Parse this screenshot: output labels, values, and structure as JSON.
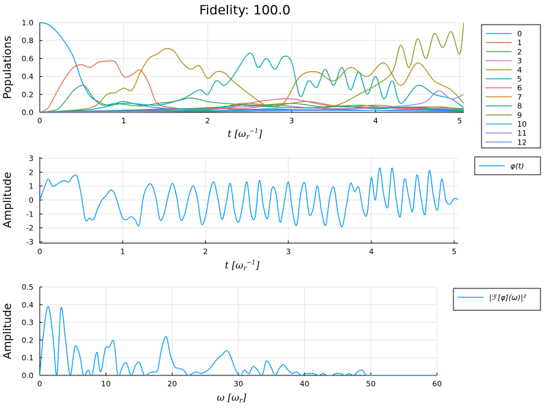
{
  "chart_data": [
    {
      "type": "line",
      "title": "Fidelity: 100.0",
      "xlabel": "t [ω_r^-1]",
      "ylabel": "Populations",
      "xlim": [
        0,
        5.05
      ],
      "ylim": [
        0,
        1.0
      ],
      "xticks": [
        0,
        1,
        2,
        3,
        4,
        5
      ],
      "yticks": [
        0.0,
        0.2,
        0.4,
        0.6,
        0.8,
        1.0
      ],
      "ytick_labels": [
        "0.0",
        "0.2",
        "0.4",
        "0.6",
        "0.8",
        "1.0"
      ],
      "grid": true,
      "legend_position": "outer-right",
      "series": [
        {
          "name": "0",
          "color": "#009AFA",
          "x": [
            0,
            0.1,
            0.2,
            0.3,
            0.4,
            0.5,
            0.6,
            0.7,
            0.8,
            0.9,
            1.0,
            1.2,
            1.4,
            1.6,
            1.8,
            2.0,
            2.4,
            2.8,
            3.2,
            3.6,
            4.0,
            4.4,
            4.8,
            5.05
          ],
          "y": [
            1.0,
            0.98,
            0.9,
            0.78,
            0.62,
            0.35,
            0.18,
            0.12,
            0.08,
            0.1,
            0.12,
            0.08,
            0.05,
            0.04,
            0.03,
            0.05,
            0.03,
            0.04,
            0.02,
            0.03,
            0.02,
            0.03,
            0.02,
            0.01
          ]
        },
        {
          "name": "1",
          "color": "#E36F47",
          "x": [
            0,
            0.1,
            0.2,
            0.3,
            0.4,
            0.5,
            0.6,
            0.7,
            0.8,
            0.9,
            1.0,
            1.1,
            1.2,
            1.3,
            1.4,
            1.6,
            1.8,
            2.0,
            2.4,
            2.8,
            3.2,
            3.6,
            4.0,
            4.4,
            4.8,
            5.05
          ],
          "y": [
            0,
            0.05,
            0.22,
            0.38,
            0.5,
            0.53,
            0.5,
            0.56,
            0.57,
            0.56,
            0.4,
            0.42,
            0.47,
            0.32,
            0.1,
            0.05,
            0.03,
            0.05,
            0.04,
            0.08,
            0.05,
            0.04,
            0.05,
            0.04,
            0.03,
            0.02
          ]
        },
        {
          "name": "2",
          "color": "#3EA44E",
          "x": [
            0,
            0.2,
            0.3,
            0.4,
            0.5,
            0.55,
            0.65,
            0.75,
            0.9,
            1.0,
            1.2,
            1.4,
            1.6,
            1.8,
            2.0,
            2.2,
            2.6,
            3.0,
            3.4,
            3.8,
            4.2,
            4.6,
            5.05
          ],
          "y": [
            0,
            0.03,
            0.12,
            0.24,
            0.3,
            0.28,
            0.15,
            0.08,
            0.1,
            0.09,
            0.07,
            0.1,
            0.12,
            0.16,
            0.12,
            0.1,
            0.08,
            0.1,
            0.06,
            0.08,
            0.05,
            0.06,
            0.04
          ]
        },
        {
          "name": "3",
          "color": "#C371D2",
          "x": [
            0,
            0.4,
            0.8,
            1.2,
            1.6,
            2.0,
            2.4,
            2.8,
            3.2,
            3.6,
            4.0,
            4.4,
            4.8,
            5.05
          ],
          "y": [
            0,
            0.01,
            0.02,
            0.03,
            0.04,
            0.03,
            0.06,
            0.08,
            0.05,
            0.04,
            0.06,
            0.05,
            0.04,
            0.03
          ]
        },
        {
          "name": "4",
          "color": "#AC8E18",
          "x": [
            0,
            0.6,
            0.8,
            0.9,
            1.0,
            1.1,
            1.2,
            1.3,
            1.4,
            1.5,
            1.6,
            1.7,
            1.8,
            1.9,
            2.0,
            2.1,
            2.2,
            2.3,
            2.5,
            2.7,
            2.9,
            3.1,
            3.3,
            3.5,
            3.7,
            3.9,
            4.1,
            4.3,
            4.5,
            4.7,
            4.9,
            5.05
          ],
          "y": [
            0,
            0.05,
            0.2,
            0.22,
            0.27,
            0.25,
            0.45,
            0.6,
            0.65,
            0.71,
            0.68,
            0.55,
            0.48,
            0.52,
            0.38,
            0.45,
            0.44,
            0.35,
            0.2,
            0.08,
            0.1,
            0.4,
            0.45,
            0.35,
            0.5,
            0.4,
            0.55,
            0.3,
            0.55,
            0.35,
            0.25,
            0.1
          ]
        },
        {
          "name": "5",
          "color": "#00A9AD",
          "x": [
            0,
            0.6,
            1.0,
            1.4,
            1.7,
            1.9,
            2.0,
            2.1,
            2.2,
            2.3,
            2.5,
            2.6,
            2.7,
            2.8,
            2.9,
            3.0,
            3.1,
            3.2,
            3.3,
            3.4,
            3.5,
            3.6,
            3.7,
            3.8,
            3.9,
            4.0,
            4.1,
            4.2,
            4.3,
            4.5,
            4.7,
            4.9,
            5.05
          ],
          "y": [
            0,
            0.03,
            0.1,
            0.08,
            0.15,
            0.25,
            0.2,
            0.35,
            0.3,
            0.4,
            0.66,
            0.5,
            0.6,
            0.48,
            0.62,
            0.56,
            0.18,
            0.35,
            0.28,
            0.48,
            0.3,
            0.5,
            0.25,
            0.45,
            0.2,
            0.4,
            0.15,
            0.35,
            0.1,
            0.3,
            0.2,
            0.15,
            0.05
          ]
        },
        {
          "name": "6",
          "color": "#ED5D92",
          "x": [
            0,
            0.8,
            1.6,
            2.2,
            2.6,
            3.0,
            3.4,
            3.8,
            4.2,
            4.6,
            5.05
          ],
          "y": [
            0,
            0.01,
            0.03,
            0.05,
            0.12,
            0.15,
            0.08,
            0.06,
            0.05,
            0.04,
            0.03
          ]
        },
        {
          "name": "7",
          "color": "#C68125",
          "x": [
            0,
            1.0,
            2.0,
            2.4,
            2.8,
            3.2,
            3.6,
            4.0,
            4.4,
            4.8,
            5.05
          ],
          "y": [
            0,
            0.01,
            0.03,
            0.1,
            0.08,
            0.12,
            0.06,
            0.08,
            0.05,
            0.06,
            0.02
          ]
        },
        {
          "name": "8",
          "color": "#00A98D",
          "x": [
            0,
            1.0,
            2.0,
            2.4,
            2.8,
            3.2,
            3.6,
            4.0,
            4.4,
            4.8,
            5.05
          ],
          "y": [
            0,
            0.02,
            0.05,
            0.08,
            0.06,
            0.05,
            0.07,
            0.04,
            0.06,
            0.03,
            0.02
          ]
        },
        {
          "name": "9",
          "color": "#8E971D",
          "x": [
            0,
            3.0,
            3.4,
            3.6,
            3.8,
            4.0,
            4.2,
            4.3,
            4.4,
            4.5,
            4.6,
            4.7,
            4.8,
            4.9,
            5.0,
            5.05
          ],
          "y": [
            0,
            0.02,
            0.05,
            0.1,
            0.2,
            0.3,
            0.45,
            0.75,
            0.5,
            0.82,
            0.6,
            0.88,
            0.72,
            0.9,
            0.65,
            1.0
          ]
        },
        {
          "name": "10",
          "color": "#00A8CB",
          "x": [
            0,
            1.0,
            2.0,
            3.0,
            4.0,
            5.05
          ],
          "y": [
            0,
            0.01,
            0.02,
            0.03,
            0.02,
            0.01
          ]
        },
        {
          "name": "11",
          "color": "#9B7FE8",
          "x": [
            0,
            2.0,
            3.0,
            3.6,
            4.0,
            4.4,
            4.6,
            4.75,
            4.9,
            5.05
          ],
          "y": [
            0,
            0.01,
            0.02,
            0.04,
            0.05,
            0.08,
            0.12,
            0.24,
            0.15,
            0.2
          ]
        },
        {
          "name": "12",
          "color": "#618DF6",
          "x": [
            0,
            1.0,
            2.0,
            3.0,
            4.0,
            5.05
          ],
          "y": [
            0,
            0.01,
            0.01,
            0.02,
            0.02,
            0.01
          ]
        }
      ]
    },
    {
      "type": "line",
      "title": "",
      "xlabel": "t [ω_r^-1]",
      "ylabel": "Amplitude",
      "xlim": [
        0,
        5.05
      ],
      "ylim": [
        -3.1,
        3.1
      ],
      "xticks": [
        0,
        1,
        2,
        3,
        4,
        5
      ],
      "yticks": [
        -3,
        -2,
        -1,
        0,
        1,
        2,
        3
      ],
      "grid": true,
      "legend_position": "outer-right",
      "series": [
        {
          "name": "φ(t)",
          "color": "#009AFA",
          "x": [
            0,
            0.05,
            0.1,
            0.15,
            0.2,
            0.25,
            0.3,
            0.35,
            0.4,
            0.45,
            0.5,
            0.55,
            0.6,
            0.65,
            0.7,
            0.75,
            0.8,
            0.85,
            0.9,
            0.95,
            1.0,
            1.05,
            1.1,
            1.15,
            1.2,
            1.25,
            1.3,
            1.35,
            1.4,
            1.45,
            1.5,
            1.55,
            1.6,
            1.65,
            1.7,
            1.75,
            1.8,
            1.85,
            1.9,
            1.95,
            2.0,
            2.05,
            2.1,
            2.15,
            2.2,
            2.25,
            2.3,
            2.35,
            2.4,
            2.45,
            2.5,
            2.55,
            2.6,
            2.65,
            2.7,
            2.75,
            2.8,
            2.85,
            2.9,
            2.95,
            3.0,
            3.05,
            3.1,
            3.15,
            3.2,
            3.25,
            3.3,
            3.35,
            3.4,
            3.45,
            3.5,
            3.55,
            3.6,
            3.65,
            3.7,
            3.75,
            3.8,
            3.85,
            3.9,
            3.95,
            4.0,
            4.05,
            4.1,
            4.15,
            4.2,
            4.25,
            4.3,
            4.35,
            4.4,
            4.45,
            4.5,
            4.55,
            4.6,
            4.65,
            4.7,
            4.75,
            4.8,
            4.85,
            4.9,
            4.95,
            5.0,
            5.05
          ],
          "y": [
            0,
            0.8,
            1.5,
            1.0,
            1.1,
            1.3,
            1.4,
            1.3,
            1.7,
            1.7,
            0.4,
            -1.4,
            -1.3,
            -1.4,
            -0.6,
            0.0,
            0.3,
            0.7,
            0.5,
            -0.4,
            -1.3,
            -1.4,
            -1.2,
            -1.4,
            -1.8,
            0.2,
            1.0,
            1.1,
            0.2,
            -1.4,
            -1.0,
            0.3,
            1.2,
            0.3,
            -1.4,
            -1.0,
            0.3,
            1.0,
            0.2,
            -1.7,
            -1.2,
            0.5,
            1.3,
            0.1,
            -1.4,
            -0.2,
            1.2,
            -0.8,
            -1.6,
            -0.3,
            1.3,
            -1.0,
            -1.2,
            1.4,
            -0.5,
            -1.3,
            0.8,
            0.5,
            -1.6,
            -0.2,
            1.3,
            -0.8,
            -1.8,
            0.5,
            1.2,
            -1.0,
            -0.6,
            1.0,
            -0.8,
            -1.8,
            0.2,
            0.9,
            -1.0,
            -1.9,
            -0.4,
            1.2,
            0.6,
            0.9,
            -0.7,
            -1.0,
            1.6,
            0.0,
            2.3,
            0.4,
            -0.5,
            2.3,
            0.1,
            -1.2,
            1.5,
            0.3,
            -0.8,
            1.8,
            0.2,
            -1.0,
            2.1,
            0.3,
            -0.7,
            1.5,
            0.0,
            -0.3,
            0.1,
            0.05
          ]
        }
      ]
    },
    {
      "type": "line",
      "title": "",
      "xlabel": "ω [ω_r]",
      "ylabel": "Amplitude",
      "xlim": [
        0,
        60
      ],
      "ylim": [
        0,
        0.5
      ],
      "xticks": [
        0,
        10,
        20,
        30,
        40,
        50,
        60
      ],
      "yticks": [
        0.0,
        0.1,
        0.2,
        0.3,
        0.4,
        0.5
      ],
      "ytick_labels": [
        "0.0",
        "0.1",
        "0.2",
        "0.3",
        "0.4",
        "0.5"
      ],
      "grid": true,
      "legend_position": "outer-right",
      "series": [
        {
          "name": "|ℱ[φ](ω)|²",
          "color": "#009AFA",
          "x": [
            0,
            0.6,
            1.3,
            2.0,
            2.6,
            3.2,
            3.9,
            4.6,
            5.3,
            6.0,
            6.6,
            7.3,
            7.9,
            8.6,
            9.2,
            9.9,
            10.5,
            11.2,
            11.8,
            12.5,
            13.1,
            13.8,
            14.5,
            15.1,
            15.8,
            16.4,
            17.1,
            17.8,
            18.4,
            19.1,
            19.7,
            20.4,
            21.0,
            21.7,
            22.4,
            23.0,
            23.7,
            24.3,
            25.0,
            25.7,
            26.3,
            27.0,
            27.6,
            28.3,
            28.9,
            29.6,
            30.3,
            30.9,
            31.6,
            32.2,
            32.9,
            33.6,
            34.2,
            34.9,
            35.5,
            36.2,
            36.8,
            37.5,
            38.2,
            38.8,
            39.5,
            40.1,
            40.8,
            41.4,
            42.1,
            42.8,
            43.4,
            44.1,
            44.7,
            45.4,
            46.1,
            46.7,
            47.4,
            48.0,
            48.7,
            49.3,
            50.0,
            50.7,
            51.3,
            52.0,
            52.6,
            53.3,
            54.0,
            54.6,
            55.3,
            55.9,
            56.6,
            57.2,
            57.9,
            58.5,
            59.2,
            60.0
          ],
          "y": [
            0,
            0.25,
            0.39,
            0.22,
            0.0,
            0.38,
            0.2,
            0.0,
            0.16,
            0.12,
            0.0,
            0.03,
            0.0,
            0.13,
            0.02,
            0.15,
            0.16,
            0.19,
            0.0,
            0.05,
            0.07,
            0.0,
            0.06,
            0.07,
            0.0,
            0.01,
            0.02,
            0.03,
            0.15,
            0.22,
            0.12,
            0.05,
            0.04,
            0.03,
            0.0,
            0.01,
            0.02,
            0.01,
            0.02,
            0.04,
            0.07,
            0.1,
            0.12,
            0.14,
            0.1,
            0.03,
            0.0,
            0.03,
            0.01,
            0.05,
            0.03,
            0.0,
            0.08,
            0.05,
            0.0,
            0.04,
            0.06,
            0.03,
            0.01,
            0.02,
            0.0,
            0.01,
            0.01,
            0.01,
            0.0,
            0.01,
            0.0,
            0.0,
            0.01,
            0.01,
            0.0,
            0.01,
            0.0,
            0.02,
            0.03,
            0.0,
            0.0,
            0.0,
            0.0,
            0.0,
            0.0,
            0.0,
            0.0,
            0.0,
            0.0,
            0.0,
            0.0,
            0.0,
            0.0,
            0.0,
            0.0,
            0.0
          ]
        }
      ]
    }
  ]
}
